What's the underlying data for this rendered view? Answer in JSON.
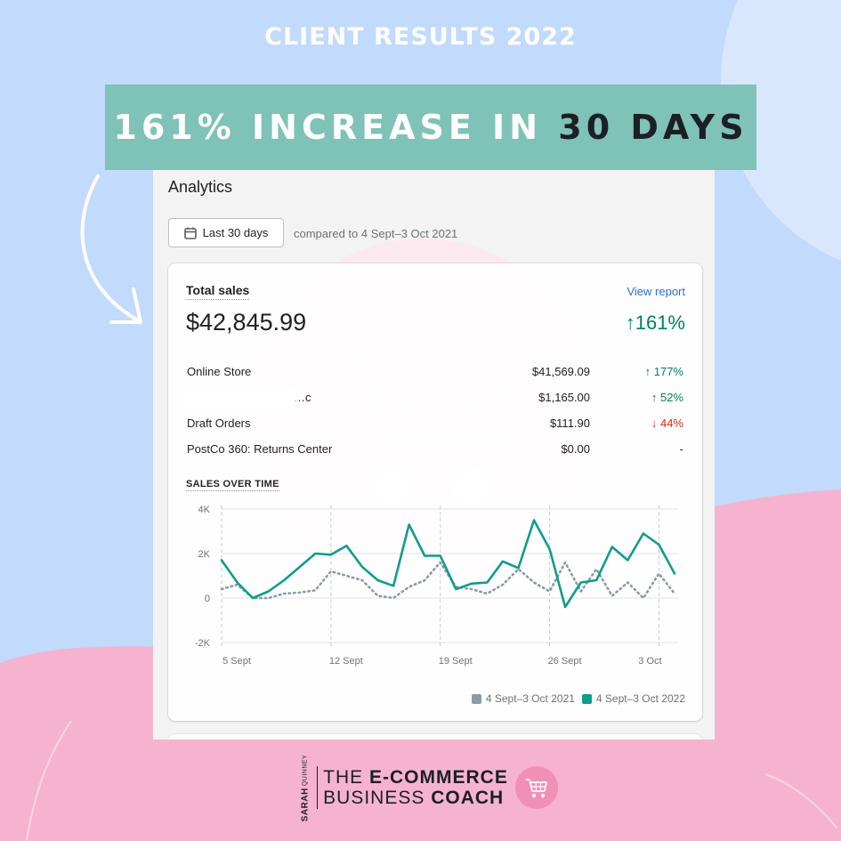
{
  "header": {
    "title": "CLIENT RESULTS 2022",
    "banner_light": "161% INCREASE IN",
    "banner_dark": "30 DAYS"
  },
  "analytics": {
    "title": "Analytics",
    "date_button": "Last 30 days",
    "compare_text": "compared to 4 Sept–3 Oct 2021"
  },
  "total_sales": {
    "label": "Total sales",
    "view_report": "View report",
    "value": "$42,845.99",
    "change": "↑161%",
    "rows": [
      {
        "name": "Online Store",
        "amount": "$41,569.09",
        "change": "↑ 177%",
        "direction": "up"
      },
      {
        "name": "…c",
        "amount": "$1,165.00",
        "change": "↑ 52%",
        "direction": "up"
      },
      {
        "name": "Draft Orders",
        "amount": "$111.90",
        "change": "↓ 44%",
        "direction": "down"
      },
      {
        "name": "PostCo 360: Returns Center",
        "amount": "$0.00",
        "change": "-",
        "direction": "none"
      }
    ]
  },
  "chart_data": {
    "type": "line",
    "title": "SALES OVER TIME",
    "xlabel": "",
    "ylabel": "",
    "x_ticks": [
      "5 Sept",
      "12 Sept",
      "19 Sept",
      "26 Sept",
      "3 Oct"
    ],
    "y_ticks": [
      "4K",
      "2K",
      "0",
      "-2K"
    ],
    "ylim": [
      -2000,
      4000
    ],
    "grid": true,
    "legend_position": "bottom-right",
    "colors": {
      "series_2021": "#8c9aa8",
      "series_2022": "#0f9c8f"
    },
    "series": [
      {
        "name": "4 Sept–3 Oct 2021",
        "style": "dotted",
        "values": [
          400,
          600,
          0,
          0,
          200,
          250,
          350,
          1200,
          1000,
          800,
          100,
          0,
          500,
          800,
          1600,
          500,
          400,
          200,
          600,
          1300,
          700,
          300,
          1600,
          300,
          1300,
          100,
          700,
          0,
          1100,
          200
        ]
      },
      {
        "name": "4 Sept–3 Oct 2022",
        "style": "solid",
        "values": [
          1700,
          700,
          0,
          300,
          800,
          1400,
          2000,
          1950,
          2350,
          1400,
          800,
          550,
          3300,
          1900,
          1900,
          400,
          650,
          700,
          1650,
          1350,
          3500,
          2200,
          -400,
          700,
          800,
          2300,
          1700,
          2900,
          2400,
          1100
        ]
      }
    ]
  },
  "footer": {
    "first_name": "SARAH",
    "last_name": "QUINNEY",
    "line1_light": "THE",
    "line1_bold": "E-COMMERCE",
    "line2_light": "BUSINESS",
    "line2_bold": "COACH"
  }
}
